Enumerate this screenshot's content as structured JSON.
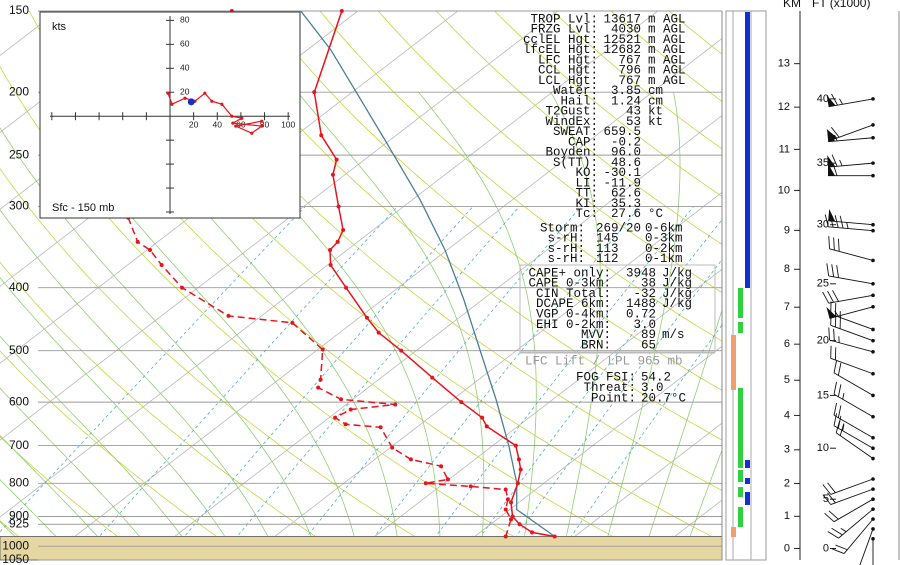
{
  "chart_data": {
    "type": "skewt",
    "ylim": [
      150,
      1050
    ],
    "log_scale": true,
    "pressure_ticks": [
      150,
      200,
      250,
      300,
      400,
      500,
      600,
      700,
      800,
      900,
      925,
      1000,
      1050
    ],
    "grid": true,
    "surface_pressure": 966,
    "temperature": {
      "color": "#e8141c",
      "pressure": [
        150,
        200,
        233,
        254,
        268,
        300,
        326,
        340,
        350,
        369,
        400,
        445,
        469,
        500,
        550,
        600,
        634,
        654,
        700,
        735,
        762,
        800,
        856,
        900,
        925,
        952,
        966
      ],
      "values": [
        -61.6,
        -53.8,
        -47.5,
        -42.8,
        -41.2,
        -36.5,
        -33.0,
        -32.0,
        -31.7,
        -29.7,
        -25.2,
        -19.2,
        -16.1,
        -11.5,
        -4.9,
        1.2,
        5.3,
        6.9,
        12.3,
        14.4,
        15.9,
        17.4,
        19.2,
        21.2,
        22.9,
        25.2,
        28.0
      ]
    },
    "dewpoint": {
      "color": "#e8141c",
      "dashed": true,
      "pressure": [
        150,
        312,
        340,
        350,
        369,
        400,
        442,
        453,
        498,
        554,
        570,
        594,
        605,
        616,
        634,
        649,
        656,
        705,
        735,
        753,
        789,
        800,
        809,
        818,
        847,
        878,
        909,
        966
      ],
      "values": [
        -72.6,
        -56.1,
        -52.0,
        -49.7,
        -46.6,
        -41.6,
        -33.3,
        -26.0,
        -19.5,
        -15.8,
        -15.0,
        -11.2,
        -5.1,
        -8.9,
        -9.4,
        -7.5,
        -3.6,
        0.2,
        3.6,
        7.5,
        9.9,
        8.2,
        13.1,
        17.0,
        18.5,
        19.6,
        21.4,
        23.1
      ]
    },
    "parcel": {
      "color": "#4a7f94",
      "pressure": [
        150,
        172,
        200,
        237,
        293,
        350,
        417,
        500,
        594,
        700,
        800,
        878,
        966
      ],
      "values": [
        -65.7,
        -57.7,
        -49.6,
        -40.5,
        -29.2,
        -20.2,
        -11.9,
        -3.6,
        4.3,
        11.6,
        17.3,
        20.7,
        28.0
      ]
    },
    "hodograph": {
      "title": "kts",
      "label": "Sfc - 150 mb",
      "color": "#e8141c",
      "xlim": [
        -110,
        110
      ],
      "ylim": [
        -85,
        87
      ],
      "xticks": [
        20,
        40,
        60,
        80,
        100
      ],
      "yticks": [
        20,
        40,
        60,
        80
      ],
      "u": [
        -1.7,
        1.7,
        12.7,
        21.1,
        29.5,
        35.4,
        43.9,
        52.3,
        60.8,
        53.2,
        77.6,
        69.2,
        55.7,
        77.6
      ],
      "v": [
        19.2,
        10,
        15,
        12.5,
        19.2,
        12.5,
        10,
        0,
        -1.7,
        -5.8,
        -8.3,
        -14.2,
        -8.3,
        -4.2
      ],
      "storm": {
        "u": 18,
        "v": 12,
        "color": "#1030d0"
      }
    },
    "km_axis": {
      "title": "KM",
      "ticks": [
        0,
        1,
        2,
        3,
        4,
        5,
        6,
        7,
        8,
        9,
        10,
        11,
        12,
        13
      ]
    },
    "ft_axis": {
      "title": "FT (x1000)",
      "ticks": [
        0,
        5,
        10,
        15,
        20,
        25,
        30,
        35,
        40
      ]
    },
    "winds": {
      "ft": [
        1,
        2,
        3,
        4,
        5,
        6,
        7,
        9,
        10,
        11,
        13,
        15,
        17,
        19,
        20,
        21,
        23,
        24,
        25,
        27,
        29.5,
        30,
        34,
        35,
        37,
        38,
        40
      ],
      "dir": [
        180,
        200,
        220,
        230,
        240,
        250,
        250,
        305,
        300,
        300,
        300,
        300,
        290,
        285,
        290,
        290,
        255,
        260,
        280,
        285,
        275,
        275,
        270,
        265,
        265,
        250,
        260
      ],
      "spd": [
        10,
        15,
        20,
        25,
        20,
        20,
        20,
        20,
        25,
        20,
        25,
        20,
        20,
        25,
        30,
        25,
        55,
        30,
        30,
        30,
        45,
        50,
        60,
        65,
        55,
        60,
        65
      ]
    }
  },
  "panel": {
    "indices": [
      [
        "TROP Lvl:",
        "13617",
        "m AGL"
      ],
      [
        "FRZG Lvl:",
        "4030",
        "m AGL"
      ],
      [
        "cclEL Hgt:",
        "12521",
        "m AGL"
      ],
      [
        "lfcEL Hgt:",
        "12682",
        "m AGL"
      ],
      [
        "LFC Hgt:",
        "767",
        "m AGL"
      ],
      [
        "CCL Hgt:",
        "796",
        "m AGL"
      ],
      [
        "LCL Hgt:",
        "767",
        "m AGL"
      ],
      [
        "Water:",
        "3.85",
        "cm"
      ],
      [
        "Hail:",
        "1.24",
        "cm"
      ],
      [
        "T2Gust:",
        "43",
        "kt"
      ],
      [
        "WindEx:",
        "53",
        "kt"
      ],
      [
        "SWEAT:",
        "659.5"
      ],
      [
        "CAP:",
        "-0.2"
      ],
      [
        "Boyden:",
        "96.0"
      ],
      [
        "S(TT):",
        "48.6"
      ],
      [
        "KO:",
        "-30.1"
      ],
      [
        "LI:",
        "-11.9"
      ],
      [
        "TT:",
        "62.6"
      ],
      [
        "KI:",
        "35.3"
      ],
      [
        "Tc:",
        "27.6",
        "°C"
      ]
    ],
    "storm": [
      [
        "Storm:",
        "269/20",
        "0-6km"
      ],
      [
        "s-rH:",
        "145",
        "0-3km"
      ],
      [
        "s-rH:",
        "113",
        "0-2km"
      ],
      [
        "s-rH:",
        "112",
        "0-1km"
      ]
    ],
    "box": [
      [
        "CAPE+ only:",
        "3948",
        "J/kg"
      ],
      [
        "CAPE 0-3km:",
        "38",
        "J/kg"
      ],
      [
        "CIN Total:",
        "-32",
        "J/kg"
      ],
      [
        "DCAPE 6km:",
        "1488",
        "J/kg"
      ],
      [
        "VGP 0-4km:",
        "0.72"
      ],
      [
        "EHI 0-2km:",
        "3.0"
      ],
      [
        "MVV:",
        "89",
        "m/s"
      ],
      [
        "BRN:",
        "65"
      ]
    ],
    "lift_note": "LFC Lift / LPL 965 mb",
    "fog": [
      [
        "FOG FSI:",
        "54.2"
      ],
      [
        "Threat:",
        "3.0"
      ],
      [
        "Point:",
        "20.7°C"
      ]
    ]
  }
}
